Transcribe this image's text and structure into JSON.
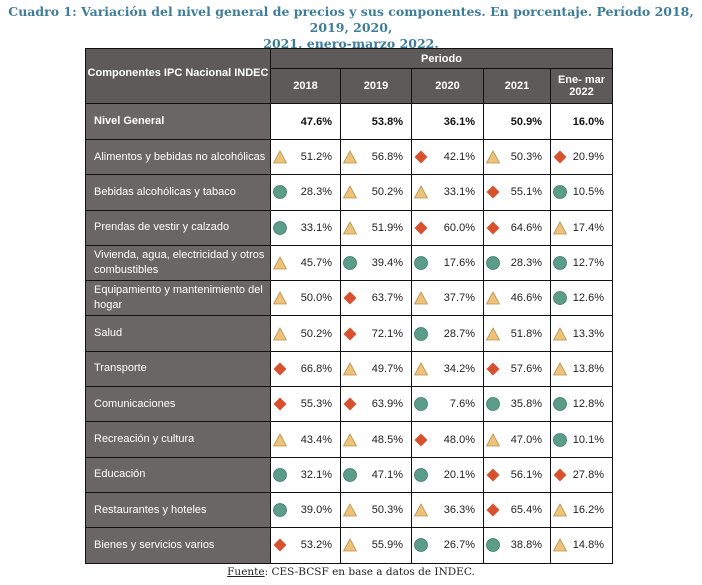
{
  "title_line1": "Cuadro 1: Variación del nivel general de precios y sus componentes. En porcentaje. Período 2018, 2019, 2020,",
  "title_line2": "2021, enero-marzo 2022.",
  "header": {
    "component_col": "Componentes  IPC Nacional INDEC",
    "period": "Periodo",
    "years": [
      "2018",
      "2019",
      "2020",
      "2021"
    ],
    "last_line1": "Ene- mar",
    "last_line2": "2022"
  },
  "nivel_general": {
    "label": "Nivel General",
    "values": [
      "47.6%",
      "53.8%",
      "36.1%",
      "50.9%",
      "16.0%"
    ]
  },
  "icon_colors": {
    "triangle": "#efc27a",
    "diamond": "#d9502f",
    "circle": "#5b9d89"
  },
  "rows": [
    {
      "label": "Alimentos y bebidas no alcohólicas",
      "values": [
        "51.2%",
        "56.8%",
        "42.1%",
        "50.3%",
        "20.9%"
      ],
      "icons": [
        "triangle",
        "triangle",
        "diamond",
        "triangle",
        "diamond"
      ]
    },
    {
      "label": "Bebidas alcohólicas y tabaco",
      "values": [
        "28.3%",
        "50.2%",
        "33.1%",
        "55.1%",
        "10.5%"
      ],
      "icons": [
        "circle",
        "triangle",
        "triangle",
        "diamond",
        "circle"
      ]
    },
    {
      "label": "Prendas de vestir y calzado",
      "values": [
        "33.1%",
        "51.9%",
        "60.0%",
        "64.6%",
        "17.4%"
      ],
      "icons": [
        "circle",
        "triangle",
        "diamond",
        "diamond",
        "triangle"
      ]
    },
    {
      "label": "Vivienda, agua, electricidad y otros combustibles",
      "values": [
        "45.7%",
        "39.4%",
        "17.6%",
        "28.3%",
        "12.7%"
      ],
      "icons": [
        "triangle",
        "circle",
        "circle",
        "circle",
        "circle"
      ]
    },
    {
      "label": "Equipamiento y mantenimiento del hogar",
      "values": [
        "50.0%",
        "63.7%",
        "37.7%",
        "46.6%",
        "12.6%"
      ],
      "icons": [
        "triangle",
        "diamond",
        "triangle",
        "triangle",
        "circle"
      ]
    },
    {
      "label": "Salud",
      "values": [
        "50.2%",
        "72.1%",
        "28.7%",
        "51.8%",
        "13.3%"
      ],
      "icons": [
        "triangle",
        "diamond",
        "circle",
        "triangle",
        "triangle"
      ]
    },
    {
      "label": "Transporte",
      "values": [
        "66.8%",
        "49.7%",
        "34.2%",
        "57.6%",
        "13.8%"
      ],
      "icons": [
        "diamond",
        "triangle",
        "triangle",
        "diamond",
        "triangle"
      ]
    },
    {
      "label": "Comunicaciones",
      "values": [
        "55.3%",
        "63.9%",
        "7.6%",
        "35.8%",
        "12.8%"
      ],
      "icons": [
        "diamond",
        "diamond",
        "circle",
        "circle",
        "circle"
      ]
    },
    {
      "label": "Recreación y cultura",
      "values": [
        "43.4%",
        "48.5%",
        "48.0%",
        "47.0%",
        "10.1%"
      ],
      "icons": [
        "triangle",
        "triangle",
        "diamond",
        "triangle",
        "circle"
      ]
    },
    {
      "label": "Educación",
      "values": [
        "32.1%",
        "47.1%",
        "20.1%",
        "56.1%",
        "27.8%"
      ],
      "icons": [
        "circle",
        "circle",
        "circle",
        "diamond",
        "diamond"
      ]
    },
    {
      "label": "Restaurantes y hoteles",
      "values": [
        "39.0%",
        "50.3%",
        "36.3%",
        "65.4%",
        "16.2%"
      ],
      "icons": [
        "circle",
        "triangle",
        "triangle",
        "diamond",
        "triangle"
      ]
    },
    {
      "label": "Bienes y servicios varios",
      "values": [
        "53.2%",
        "55.9%",
        "26.7%",
        "38.8%",
        "14.8%"
      ],
      "icons": [
        "diamond",
        "triangle",
        "circle",
        "circle",
        "triangle"
      ]
    }
  ],
  "footer": {
    "label": "Fuente",
    "text": ": CES-BCSF en base a datos de INDEC."
  }
}
